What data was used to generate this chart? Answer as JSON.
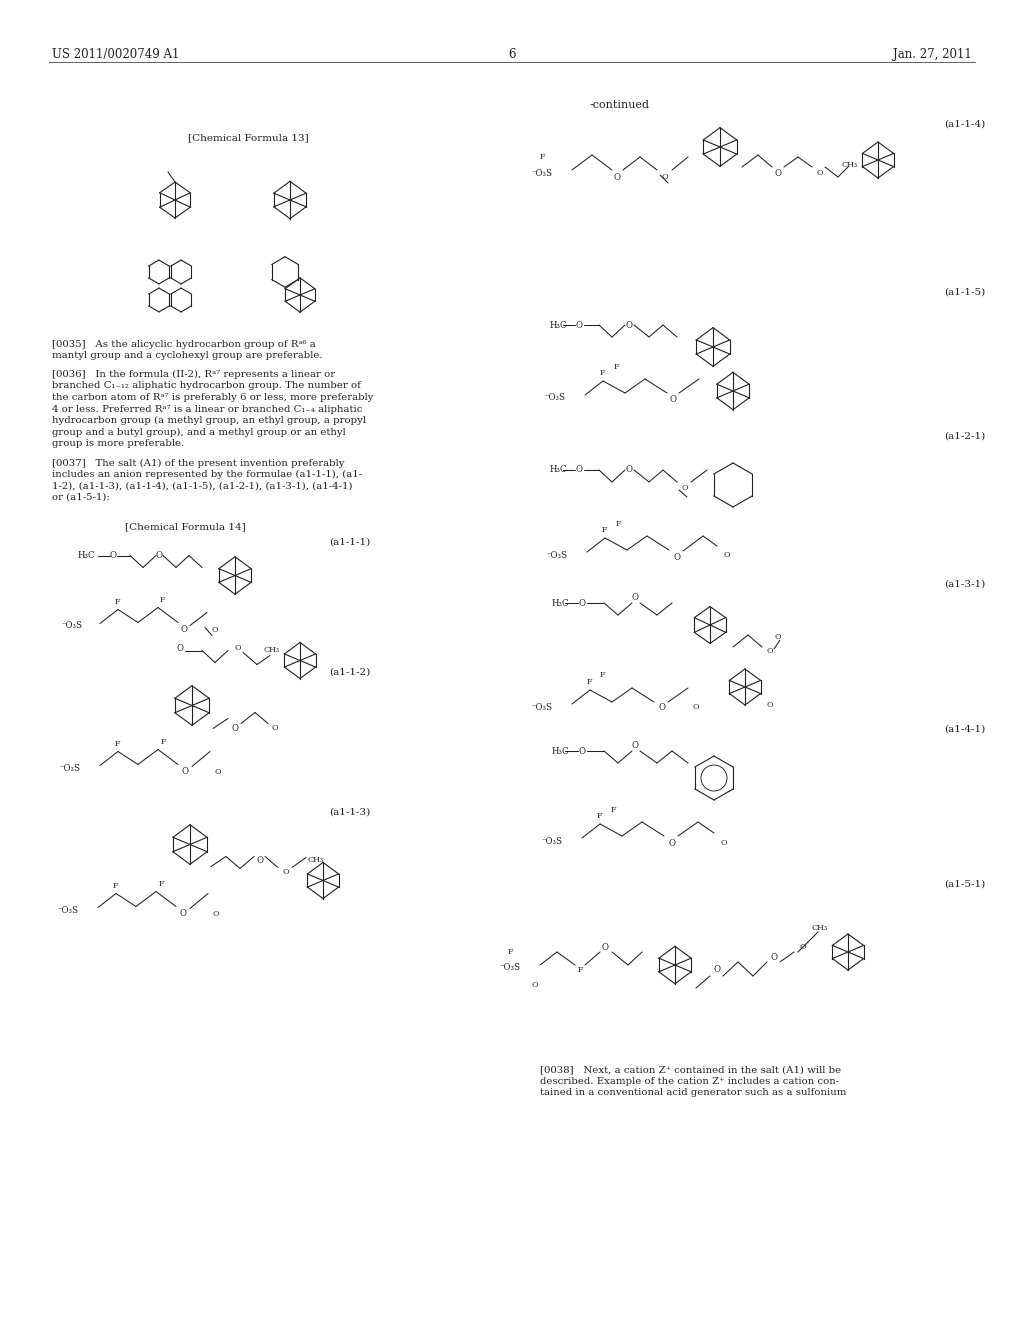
{
  "header_left": "US 2011/0020749 A1",
  "header_right": "Jan. 27, 2011",
  "page_number": "6",
  "continued": "-continued",
  "chem13_label": "[Chemical Formula 13]",
  "chem14_label": "[Chemical Formula 14]",
  "para_0035": "[0035]   As the alicyclic hydrocarbon group of Rᵃ⁶ an adamantyl group and a cyclohexyl group are preferable.",
  "para_0036_lines": [
    "[0036]   In the formula (II-2), Rᵃ⁷ represents a linear or",
    "branched C₁₋₁₂ aliphatic hydrocarbon group. The number of",
    "the carbon atom of Rᵃ⁷ is preferably 6 or less, more preferably",
    "4 or less. Preferred Rᵃ⁷ is a linear or branched C₁₋₄ aliphatic",
    "hydrocarbon group (a methyl group, an ethyl group, a propyl",
    "group and a butyl group), and a methyl group or an ethyl",
    "group is more preferable."
  ],
  "para_0037_lines": [
    "[0037]   The salt (A1) of the present invention preferably",
    "includes an anion represented by the formulae (a1-1-1), (a1-",
    "1-2), (a1-1-3), (a1-1-4), (a1-1-5), (a1-2-1), (a1-3-1), (a1-4-1)",
    "or (a1-5-1):"
  ],
  "para_0038_lines": [
    "[0038]   Next, a cation Z⁺ contained in the salt (A1) will be",
    "described. Example of the cation Z⁺ includes a cation con-",
    "tained in a conventional acid generator such as a sulfonium"
  ],
  "bg_color": "#ffffff",
  "text_color": "#231f20"
}
